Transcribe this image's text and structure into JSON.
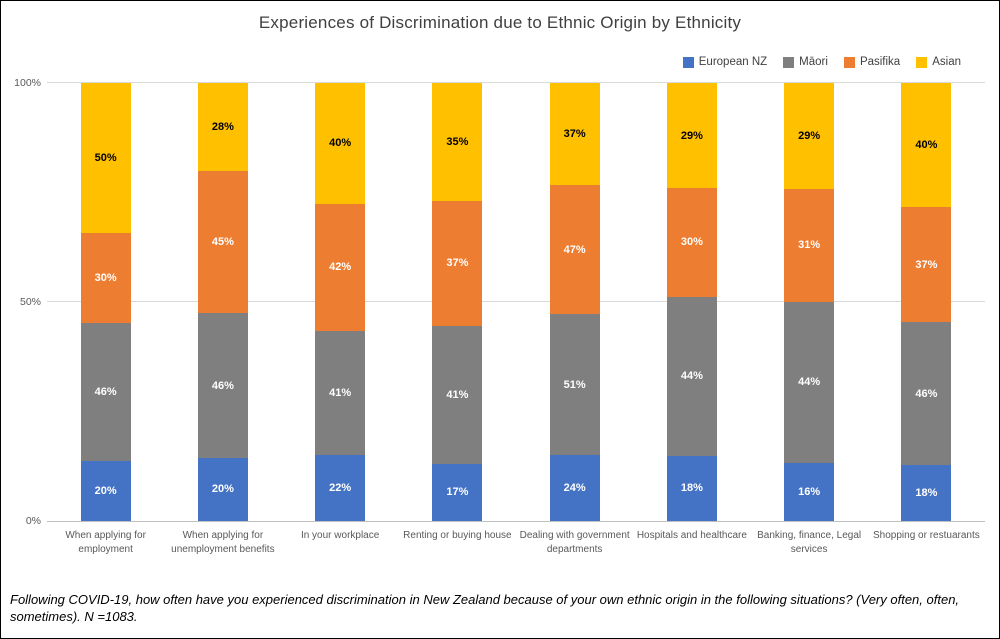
{
  "chart_data": {
    "type": "bar",
    "stacked": true,
    "normalized_to_100_percent": true,
    "title": "Experiences of Discrimination due to Ethnic Origin by Ethnicity",
    "categories": [
      "When applying for employment",
      "When applying for unemployment benefits",
      "In your workplace",
      "Renting or buying house",
      "Dealing with government departments",
      "Hospitals and healthcare",
      "Banking, finance, Legal services",
      "Shopping or restuarants"
    ],
    "series": [
      {
        "name": "European NZ",
        "color": "#4472C4",
        "label_color": "#ffffff",
        "values": [
          20,
          20,
          22,
          17,
          24,
          18,
          16,
          18
        ]
      },
      {
        "name": "Māori",
        "color": "#7F7F7F",
        "label_color": "#ffffff",
        "values": [
          46,
          46,
          41,
          41,
          51,
          44,
          44,
          46
        ]
      },
      {
        "name": "Pasifika",
        "color": "#ED7D31",
        "label_color": "#ffffff",
        "values": [
          30,
          45,
          42,
          37,
          47,
          30,
          31,
          37
        ]
      },
      {
        "name": "Asian",
        "color": "#FFC000",
        "label_color": "#000000",
        "values": [
          50,
          28,
          40,
          35,
          37,
          29,
          29,
          40
        ]
      }
    ],
    "y_axis": {
      "ticks": [
        {
          "label": "0%",
          "value": 0
        },
        {
          "label": "50%",
          "value": 50
        },
        {
          "label": "100%",
          "value": 100
        }
      ],
      "range": [
        0,
        100
      ]
    },
    "gridlines": [
      50,
      100
    ],
    "legend_position": "top-right",
    "footnote": "Following COVID-19, how often have you experienced discrimination in New Zealand because of your own ethnic origin in the following situations? (Very often, often, sometimes). N =1083."
  }
}
